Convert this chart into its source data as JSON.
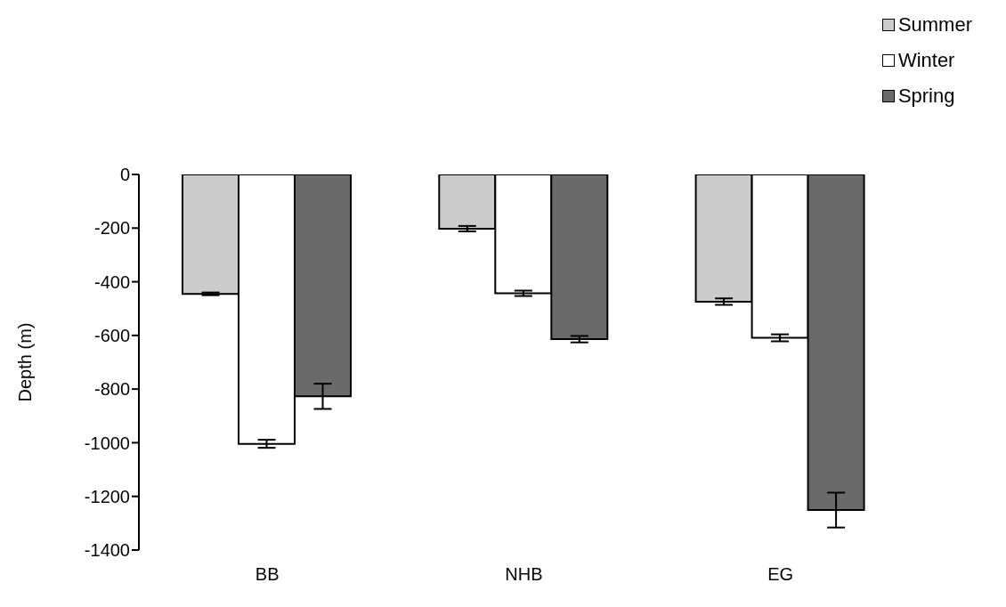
{
  "chart_data": {
    "type": "bar",
    "ylabel": "Depth (m)",
    "categories": [
      "BB",
      "NHB",
      "EG"
    ],
    "series": [
      {
        "name": "Summer",
        "color": "#cccccc",
        "values": [
          -445,
          -202,
          -474
        ],
        "errors": [
          5,
          10,
          12
        ]
      },
      {
        "name": "Winter",
        "color": "#ffffff",
        "values": [
          -1004,
          -443,
          -609
        ],
        "errors": [
          15,
          10,
          13
        ]
      },
      {
        "name": "Spring",
        "color": "#6a6a6a",
        "values": [
          -827,
          -614,
          -1251
        ],
        "errors": [
          47,
          12,
          65
        ]
      }
    ],
    "ylim": [
      -1400,
      0
    ],
    "yticks": [
      0,
      -200,
      -400,
      -600,
      -800,
      -1000,
      -1200,
      -1400
    ],
    "legend": "top right"
  }
}
